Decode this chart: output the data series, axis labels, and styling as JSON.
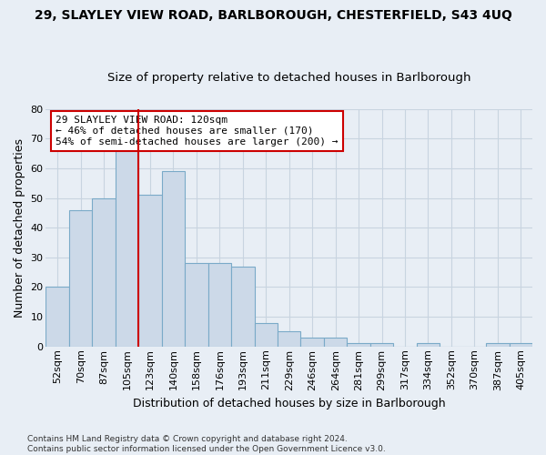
{
  "title_line1": "29, SLAYLEY VIEW ROAD, BARLBOROUGH, CHESTERFIELD, S43 4UQ",
  "title_line2": "Size of property relative to detached houses in Barlborough",
  "xlabel": "Distribution of detached houses by size in Barlborough",
  "ylabel": "Number of detached properties",
  "categories": [
    "52sqm",
    "70sqm",
    "87sqm",
    "105sqm",
    "123sqm",
    "140sqm",
    "158sqm",
    "176sqm",
    "193sqm",
    "211sqm",
    "229sqm",
    "246sqm",
    "264sqm",
    "281sqm",
    "299sqm",
    "317sqm",
    "334sqm",
    "352sqm",
    "370sqm",
    "387sqm",
    "405sqm"
  ],
  "values": [
    20,
    46,
    50,
    66,
    51,
    59,
    28,
    28,
    27,
    8,
    5,
    3,
    3,
    1,
    1,
    0,
    1,
    0,
    0,
    1,
    1
  ],
  "bar_color": "#ccd9e8",
  "bar_edge_color": "#7aaac8",
  "vline_x_index": 4,
  "vline_color": "#cc0000",
  "annotation_text": "29 SLAYLEY VIEW ROAD: 120sqm\n← 46% of detached houses are smaller (170)\n54% of semi-detached houses are larger (200) →",
  "annotation_box_color": "#ffffff",
  "annotation_box_edge_color": "#cc0000",
  "ylim": [
    0,
    80
  ],
  "yticks": [
    0,
    10,
    20,
    30,
    40,
    50,
    60,
    70,
    80
  ],
  "footnote": "Contains HM Land Registry data © Crown copyright and database right 2024.\nContains public sector information licensed under the Open Government Licence v3.0.",
  "bg_color": "#e8eef5",
  "grid_color": "#c8d4e0",
  "title_fontsize": 10,
  "subtitle_fontsize": 9.5,
  "axis_label_fontsize": 9,
  "tick_fontsize": 8,
  "footnote_fontsize": 6.5
}
